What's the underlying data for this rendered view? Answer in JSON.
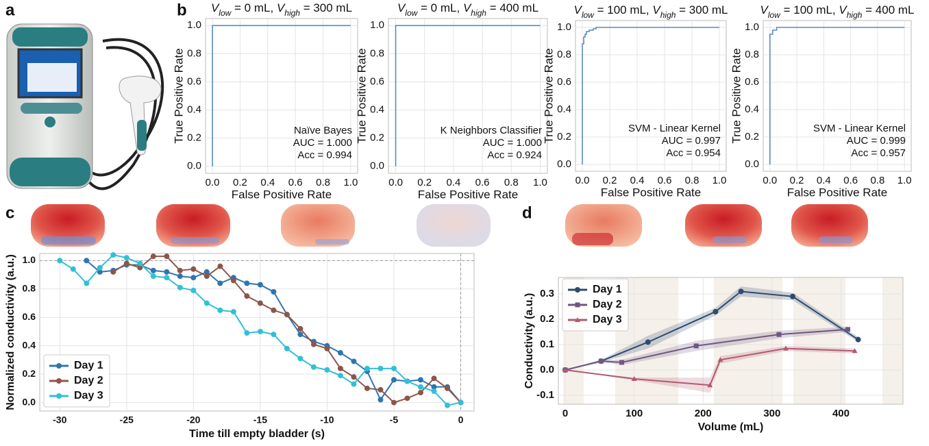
{
  "panel_labels": [
    "a",
    "b",
    "c",
    "d"
  ],
  "chart_data": [
    {
      "type": "line",
      "title": [
        "V",
        "low",
        " = 0 mL, ",
        "V",
        "high",
        " = 300 mL"
      ],
      "x_label": "False Positive Rate",
      "y_label": "True Positive Rate",
      "x": [
        0,
        0,
        1
      ],
      "values": [
        0,
        1,
        1
      ],
      "color": "#5a8ab8",
      "annotations": [
        "Naïve Bayes",
        "AUC = 1.000",
        "Acc = 0.994"
      ],
      "xlim": [
        -0.05,
        1.05
      ],
      "ylim": [
        -0.05,
        1.05
      ],
      "xticks": [
        {
          "value": 0,
          "label": "0.0"
        },
        0.2,
        0.4,
        0.6,
        0.8,
        {
          "value": 1,
          "label": "1.0"
        }
      ],
      "yticks": [
        {
          "value": 0,
          "label": "0.0"
        },
        0.2,
        0.4,
        0.6,
        0.8,
        {
          "value": 1,
          "label": "1.0"
        }
      ],
      "grid": true
    },
    {
      "type": "line",
      "title": [
        "V",
        "low",
        " = 0 mL, ",
        "V",
        "high",
        " = 400 mL"
      ],
      "x_label": "False Positive Rate",
      "y_label": "True Positive Rate",
      "x": [
        0,
        0,
        1
      ],
      "values": [
        0,
        1,
        1
      ],
      "color": "#5a8ab8",
      "annotations": [
        "K Neighbors Classifier",
        "AUC = 1.000",
        "Acc = 0.924"
      ],
      "xlim": [
        -0.05,
        1.05
      ],
      "ylim": [
        -0.05,
        1.05
      ],
      "xticks": [
        {
          "value": 0,
          "label": "0.0"
        },
        0.2,
        0.4,
        0.6,
        0.8,
        {
          "value": 1,
          "label": "1.0"
        }
      ],
      "yticks": [
        {
          "value": 0,
          "label": "0.0"
        },
        0.2,
        0.4,
        0.6,
        0.8,
        {
          "value": 1,
          "label": "1.0"
        }
      ],
      "grid": true
    },
    {
      "type": "line",
      "title": [
        "V",
        "low",
        " = 100 mL, ",
        "V",
        "high",
        " = 300 mL"
      ],
      "x_label": "False Positive Rate",
      "y_label": "True Positive Rate",
      "x": [
        0,
        0,
        0.01,
        0.01,
        0.02,
        0.02,
        0.03,
        0.03,
        0.05,
        0.05,
        0.08,
        0.08,
        0.1,
        0.1,
        1
      ],
      "values": [
        0,
        0.88,
        0.88,
        0.93,
        0.93,
        0.95,
        0.95,
        0.97,
        0.97,
        0.98,
        0.98,
        0.99,
        0.99,
        1,
        1
      ],
      "color": "#5a8ab8",
      "annotations": [
        "SVM - Linear Kernel",
        "AUC = 0.997",
        "Acc = 0.954"
      ],
      "xlim": [
        -0.05,
        1.05
      ],
      "ylim": [
        -0.05,
        1.05
      ],
      "xticks": [
        {
          "value": 0,
          "label": "0.0"
        },
        0.2,
        0.4,
        0.6,
        0.8,
        {
          "value": 1,
          "label": "1.0"
        }
      ],
      "yticks": [
        {
          "value": 0,
          "label": "0.0"
        },
        0.2,
        0.4,
        0.6,
        0.8,
        {
          "value": 1,
          "label": "1.0"
        }
      ],
      "grid": true
    },
    {
      "type": "line",
      "title": [
        "V",
        "low",
        " = 100 mL, ",
        "V",
        "high",
        " = 400 mL"
      ],
      "x_label": "False Positive Rate",
      "y_label": "True Positive Rate",
      "x": [
        0,
        0,
        0.02,
        0.02,
        0.05,
        0.05,
        1
      ],
      "values": [
        0,
        0.95,
        0.95,
        0.98,
        0.98,
        1,
        1
      ],
      "color": "#5a8ab8",
      "annotations": [
        "SVM - Linear Kernel",
        "AUC = 0.999",
        "Acc = 0.957"
      ],
      "xlim": [
        -0.05,
        1.05
      ],
      "ylim": [
        -0.05,
        1.05
      ],
      "xticks": [
        {
          "value": 0,
          "label": "0.0"
        },
        0.2,
        0.4,
        0.6,
        0.8,
        {
          "value": 1,
          "label": "1.0"
        }
      ],
      "yticks": [
        {
          "value": 0,
          "label": "0.0"
        },
        0.2,
        0.4,
        0.6,
        0.8,
        {
          "value": 1,
          "label": "1.0"
        }
      ],
      "grid": true
    },
    {
      "type": "line",
      "x_label": "Time till empty bladder (s)",
      "y_label": "Normalized conductivity (a.u.)",
      "series": [
        {
          "name": "Day 1",
          "color": "#2e75b0",
          "marker": "o",
          "x": [
            -28,
            -27,
            -26,
            -25,
            -24,
            -23,
            -22,
            -21,
            -20,
            -19,
            -18,
            -17,
            -16,
            -15,
            -14,
            -13,
            -12,
            -11,
            -10,
            -9,
            -8,
            -7,
            -6,
            -5,
            -4,
            -3,
            -2,
            -1,
            0
          ],
          "values": [
            1.0,
            0.92,
            0.93,
            0.97,
            0.97,
            0.93,
            0.92,
            0.89,
            0.88,
            0.92,
            0.84,
            0.88,
            0.84,
            0.83,
            0.78,
            0.62,
            0.48,
            0.43,
            0.4,
            0.35,
            0.29,
            0.22,
            0.02,
            0.16,
            0.15,
            0.16,
            0.11,
            0.11,
            0.0
          ]
        },
        {
          "name": "Day 2",
          "color": "#8c564b",
          "marker": "o",
          "x": [
            -26,
            -25,
            -24,
            -23,
            -22,
            -21,
            -20,
            -19,
            -18,
            -17,
            -16,
            -15,
            -14,
            -13,
            -12,
            -11,
            -10,
            -9,
            -8,
            -7,
            -6,
            -5,
            -4,
            -3,
            -2,
            -1,
            0
          ],
          "values": [
            0.92,
            0.98,
            0.95,
            1.03,
            1.03,
            0.93,
            0.94,
            0.89,
            0.96,
            0.86,
            0.75,
            0.7,
            0.65,
            0.62,
            0.52,
            0.41,
            0.38,
            0.24,
            0.18,
            0.1,
            0.09,
            0.0,
            0.03,
            0.07,
            0.17,
            0.1,
            0.0
          ]
        },
        {
          "name": "Day 3",
          "color": "#31c0d6",
          "marker": "o",
          "x": [
            -30,
            -29,
            -28,
            -27,
            -26,
            -25,
            -24,
            -23,
            -22,
            -21,
            -20,
            -19,
            -18,
            -17,
            -16,
            -15,
            -14,
            -13,
            -12,
            -11,
            -10,
            -9,
            -8,
            -7,
            -6,
            -5,
            -4,
            -3,
            -2,
            -1,
            0
          ],
          "values": [
            1.0,
            0.94,
            0.84,
            0.95,
            1.04,
            1.02,
            0.98,
            0.89,
            0.88,
            0.81,
            0.79,
            0.7,
            0.65,
            0.64,
            0.49,
            0.5,
            0.48,
            0.38,
            0.31,
            0.25,
            0.23,
            0.19,
            0.13,
            0.24,
            0.24,
            0.24,
            0.15,
            0.11,
            0.08,
            -0.02,
            0.0
          ]
        }
      ],
      "hline": 1,
      "vline": 0,
      "legend": "lower left",
      "xlim": [
        -31.5,
        1
      ],
      "ylim": [
        -0.06,
        1.05
      ],
      "xticks": [
        -30,
        -25,
        -20,
        -15,
        -10,
        -5,
        0
      ],
      "yticks": [
        {
          "value": 0,
          "label": "0.0"
        },
        0.2,
        0.4,
        0.6,
        0.8,
        {
          "value": 1,
          "label": "1.0"
        }
      ],
      "grid": true
    },
    {
      "type": "line",
      "x_label": "Volume (mL)",
      "y_label": "Conductivity (a.u.)",
      "series": [
        {
          "name": "Day 1",
          "color": "#2e4a6e",
          "marker": "o",
          "x": [
            0,
            52,
            120,
            218,
            255,
            330,
            425
          ],
          "values": [
            0,
            0.035,
            0.11,
            0.23,
            0.31,
            0.29,
            0.12
          ],
          "errors": [
            0,
            0.005,
            0.025,
            0.015,
            0.02,
            0.015,
            0.01
          ]
        },
        {
          "name": "Day 2",
          "color": "#6e5880",
          "marker": "s",
          "x": [
            0,
            52,
            82,
            190,
            310,
            410
          ],
          "values": [
            0,
            0.035,
            0.03,
            0.095,
            0.14,
            0.16
          ],
          "errors": [
            0,
            0.005,
            0.01,
            0.02,
            0.015,
            0.01
          ]
        },
        {
          "name": "Day 3",
          "color": "#b05a72",
          "marker": "^",
          "x": [
            0,
            100,
            210,
            225,
            320,
            420
          ],
          "values": [
            0,
            -0.035,
            -0.06,
            0.04,
            0.085,
            0.075
          ],
          "errors": [
            0,
            0.005,
            0.03,
            0.015,
            0.01,
            0.01
          ]
        }
      ],
      "legend": "upper left",
      "xlim": [
        -10,
        490
      ],
      "ylim": [
        -0.135,
        0.365
      ],
      "xticks": [
        0,
        100,
        200,
        300,
        400
      ],
      "yticks": [
        -0.1,
        {
          "value": 0,
          "label": "0.0"
        },
        0.1,
        0.2,
        0.3
      ],
      "grid": true
    }
  ]
}
